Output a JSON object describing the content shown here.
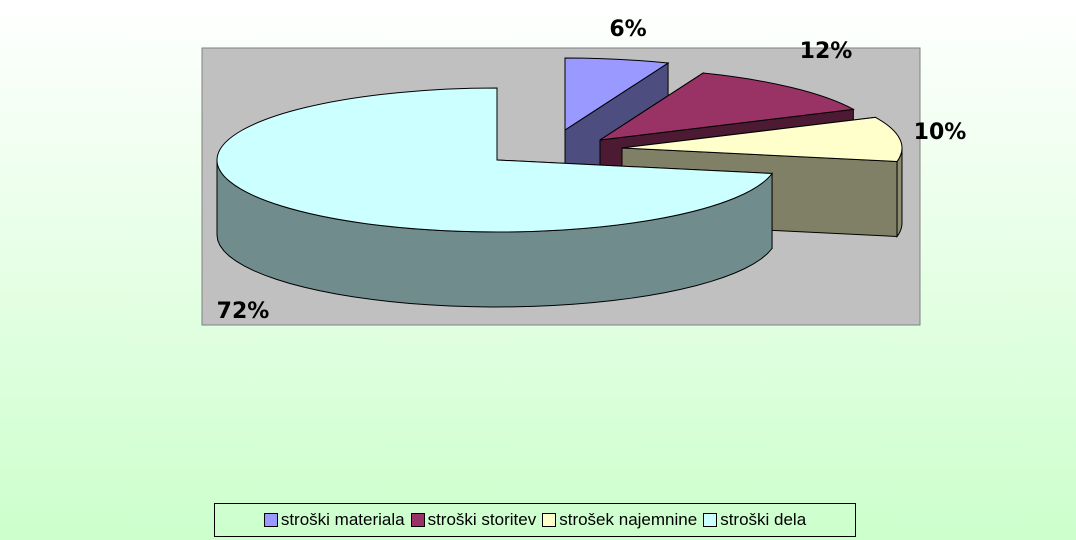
{
  "chart_data": {
    "type": "pie3d",
    "categories": [
      "stroški materiala",
      "stroški storitev",
      "strošek najemnine",
      "stroški dela"
    ],
    "values": [
      6,
      12,
      10,
      72
    ],
    "value_labels": [
      "6%",
      "12%",
      "10%",
      "72%"
    ],
    "colors": [
      "#9999ff",
      "#993366",
      "#ffffcc",
      "#ccffff"
    ],
    "legend": "bottom"
  }
}
